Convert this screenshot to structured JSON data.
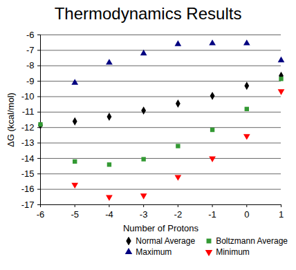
{
  "chart_data": {
    "type": "scatter",
    "title": "Thermodynamics Results",
    "x_label": "Number of Protons",
    "y_label": "ΔG (kcal/mol)",
    "x": [
      -6,
      -5,
      -4,
      -3,
      -2,
      -1,
      0,
      1
    ],
    "series": [
      {
        "name": "Normal Average",
        "color": "#000000",
        "marker": "diamond",
        "values": [
          -11.85,
          -11.6,
          -11.3,
          -10.9,
          -10.45,
          -9.95,
          -9.3,
          -8.65
        ]
      },
      {
        "name": "Boltzmann Average",
        "color": "#339933",
        "marker": "square",
        "values": [
          -11.8,
          -14.2,
          -14.4,
          -14.05,
          -13.2,
          -12.15,
          -10.8,
          -8.85
        ]
      },
      {
        "name": "Maximum",
        "color": "#000080",
        "marker": "triangle",
        "values": [
          null,
          -9.1,
          -7.8,
          -7.2,
          -6.6,
          -6.55,
          -6.55,
          -7.65
        ]
      },
      {
        "name": "Minimum",
        "color": "#ff0000",
        "marker": "triangle-down",
        "values": [
          null,
          -15.7,
          -16.5,
          -16.4,
          -15.2,
          -14.0,
          -12.55,
          -9.65
        ]
      }
    ],
    "xlim": [
      -6,
      1
    ],
    "xticks": [
      -6,
      -5,
      -4,
      -3,
      -2,
      -1,
      0,
      1
    ],
    "ylim": [
      -17,
      -6
    ],
    "yticks": [
      -17,
      -16,
      -15,
      -14,
      -13,
      -12,
      -11,
      -10,
      -9,
      -8,
      -7,
      -6
    ],
    "grid": true,
    "legend": "lower right"
  }
}
